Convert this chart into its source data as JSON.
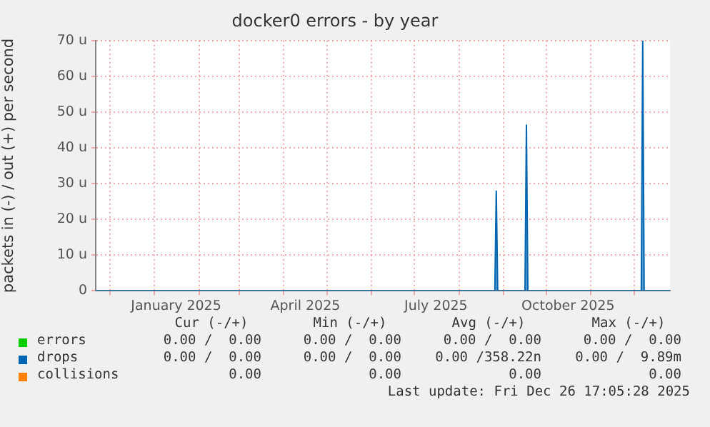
{
  "chart_data": {
    "type": "area",
    "title": "docker0 errors - by year",
    "ylabel": "packets in (-) / out (+) per second",
    "xlim": [
      "2024-11-21",
      "2025-12-26"
    ],
    "xticks": [
      {
        "value": "2024-12-01",
        "label": null
      },
      {
        "value": "2025-01-01",
        "label": null
      },
      {
        "value": "2025-01-16",
        "label": "January 2025"
      },
      {
        "value": "2025-02-01",
        "label": null
      },
      {
        "value": "2025-03-01",
        "label": null
      },
      {
        "value": "2025-04-01",
        "label": null
      },
      {
        "value": "2025-04-16",
        "label": "April 2025"
      },
      {
        "value": "2025-05-01",
        "label": null
      },
      {
        "value": "2025-06-01",
        "label": null
      },
      {
        "value": "2025-07-01",
        "label": null
      },
      {
        "value": "2025-07-16",
        "label": "July 2025"
      },
      {
        "value": "2025-08-01",
        "label": null
      },
      {
        "value": "2025-09-01",
        "label": null
      },
      {
        "value": "2025-10-01",
        "label": null
      },
      {
        "value": "2025-10-16",
        "label": "October 2025"
      },
      {
        "value": "2025-11-01",
        "label": null
      },
      {
        "value": "2025-12-01",
        "label": null
      }
    ],
    "ylim": [
      0,
      70
    ],
    "yticks": [
      0,
      {
        "value": 10,
        "label": "10 u"
      },
      {
        "value": 20,
        "label": "20 u"
      },
      {
        "value": 30,
        "label": "30 u"
      },
      {
        "value": 40,
        "label": "40 u"
      },
      {
        "value": 50,
        "label": "50 u"
      },
      {
        "value": 60,
        "label": "60 u"
      },
      {
        "value": 70,
        "label": "70 u"
      }
    ],
    "grid": true,
    "legend": "bottom",
    "series": [
      {
        "name": "errors",
        "color": "#00cc00"
      },
      {
        "name": "drops",
        "color": "#0066b3",
        "x": [
          "2024-11-21",
          "2025-08-26",
          "2025-08-27",
          "2025-08-28",
          "2025-09-16",
          "2025-09-17",
          "2025-09-18",
          "2025-12-06",
          "2025-12-07",
          "2025-12-08",
          "2025-12-26"
        ],
        "values": [
          0,
          0,
          28,
          0,
          0,
          46.5,
          0,
          0,
          70,
          0,
          0
        ]
      },
      {
        "name": "collisions",
        "color": "#ff8000"
      }
    ],
    "annotations": [
      "Cur (-/+)",
      "Min (-/+)",
      "Avg (-/+)",
      "Max (-/+)",
      "0.00 /  0.00",
      "0.00 /  0.00",
      "0.00 /  0.00",
      "0.00 /  0.00",
      "0.00 /  0.00",
      "0.00 /  0.00",
      "0.00 /358.22n",
      "0.00 /  9.89m",
      "0.00",
      "0.00",
      "0.00",
      "0.00",
      "Last update: Fri Dec 26 17:05:28 2025"
    ]
  }
}
